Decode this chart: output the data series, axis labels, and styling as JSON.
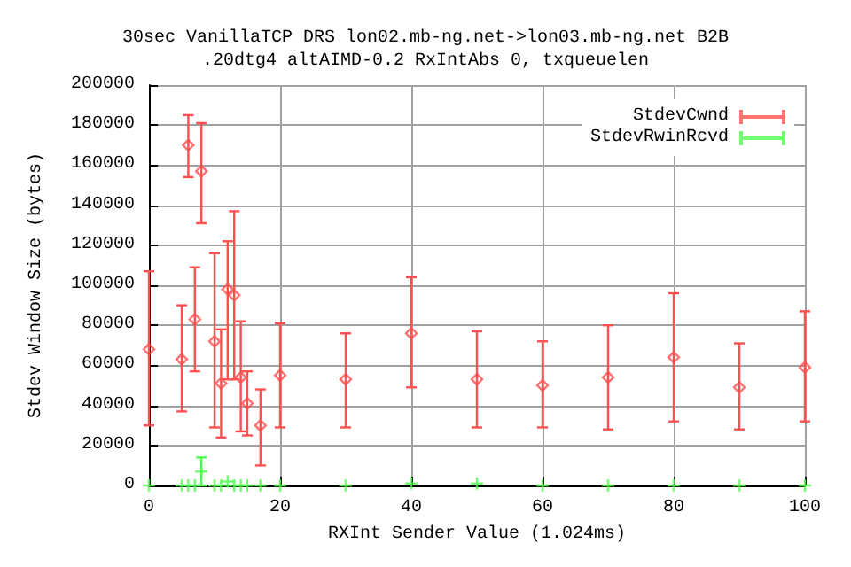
{
  "chart_data": {
    "type": "scatter",
    "title": "30sec VanillaTCP DRS lon02.mb-ng.net->lon03.mb-ng.net B2B",
    "subtitle": ".20dtg4 altAIMD-0.2 RxIntAbs 0, txqueuelen",
    "xlabel": "RXInt Sender Value (1.024ms)",
    "ylabel": "Stdev Window Size (bytes)",
    "xlim": [
      0,
      100
    ],
    "xticks": [
      0,
      20,
      40,
      60,
      80,
      100
    ],
    "ylim": [
      0,
      200000
    ],
    "yticks": [
      0,
      20000,
      40000,
      60000,
      80000,
      100000,
      120000,
      140000,
      160000,
      180000,
      200000
    ],
    "grid": true,
    "legend": "top right",
    "series": [
      {
        "name": "StdevCwnd",
        "color": "#ff4f4f",
        "marker": "diamond",
        "x": [
          0,
          5,
          6,
          7,
          8,
          10,
          11,
          12,
          13,
          14,
          15,
          17,
          20,
          30,
          40,
          50,
          60,
          70,
          80,
          90,
          100
        ],
        "values": [
          68000,
          63000,
          170000,
          83000,
          157000,
          72000,
          51000,
          98000,
          95000,
          54000,
          41000,
          30000,
          55000,
          53000,
          76000,
          53000,
          50000,
          54000,
          64000,
          49000,
          59000
        ],
        "errors": [
          [
            30000,
            107000
          ],
          [
            37000,
            90000
          ],
          [
            154000,
            185000
          ],
          [
            57000,
            109000
          ],
          [
            131000,
            181000
          ],
          [
            29000,
            116000
          ],
          [
            24000,
            78000
          ],
          [
            53000,
            122000
          ],
          [
            53000,
            137000
          ],
          [
            27000,
            82000
          ],
          [
            25000,
            57000
          ],
          [
            10000,
            48000
          ],
          [
            29000,
            81000
          ],
          [
            29000,
            76000
          ],
          [
            49000,
            104000
          ],
          [
            29000,
            77000
          ],
          [
            29000,
            72000
          ],
          [
            28000,
            80000
          ],
          [
            32000,
            96000
          ],
          [
            28000,
            71000
          ],
          [
            32000,
            87000
          ]
        ]
      },
      {
        "name": "StdevRwinRcvd",
        "color": "#4fff4f",
        "marker": "cross",
        "x": [
          0,
          5,
          6,
          7,
          8,
          10,
          11,
          12,
          13,
          14,
          15,
          17,
          20,
          30,
          40,
          50,
          60,
          70,
          80,
          90,
          100
        ],
        "values": [
          0,
          0,
          0,
          0,
          7000,
          0,
          0,
          2000,
          0,
          0,
          0,
          0,
          0,
          0,
          1000,
          1000,
          0,
          0,
          0,
          0,
          0
        ],
        "errors": [
          null,
          null,
          null,
          null,
          [
            0,
            14000
          ],
          null,
          null,
          null,
          null,
          null,
          null,
          null,
          null,
          null,
          null,
          null,
          null,
          null,
          null,
          null,
          null
        ]
      }
    ]
  }
}
